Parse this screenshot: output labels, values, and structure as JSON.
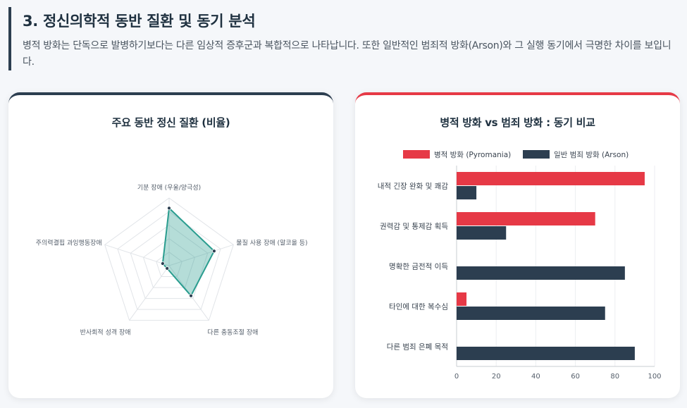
{
  "header": {
    "title": "3. 정신의학적 동반 질환 및 동기 분석",
    "description": "병적 방화는 단독으로 발병하기보다는 다른 임상적 증후군과 복합적으로 나타납니다. 또한 일반적인 범죄적 방화(Arson)와 그 실행 동기에서 극명한 차이를 보입니다."
  },
  "colors": {
    "dark": "#2c3e50",
    "red": "#e63946",
    "teal": "#2a9d8f",
    "teal_fill": "rgba(42,157,143,0.35)"
  },
  "chart_data": [
    {
      "type": "radar",
      "title": "주요 동반 정신 질환 (비율)",
      "axes": [
        "기분 장애 (우울/양극성)",
        "물질 사용 장애 (알코올 등)",
        "다른 충동조절 장애",
        "반사회적 성격 장애",
        "주의력결핍 과잉행동장애"
      ],
      "values": [
        85,
        70,
        55,
        5,
        10
      ],
      "max": 100,
      "grid_levels": 5
    },
    {
      "type": "bar",
      "orientation": "horizontal",
      "title": "병적 방화 vs 범죄 방화 : 동기 비교",
      "categories": [
        "내적 긴장 완화 및 쾌감",
        "권력감 및 통제감 획득",
        "명확한 금전적 이득",
        "타인에 대한 복수심",
        "다른 범죄 은폐 목적"
      ],
      "series": [
        {
          "name": "병적 방화 (Pyromania)",
          "color": "#e63946",
          "values": [
            95,
            70,
            0,
            5,
            0
          ]
        },
        {
          "name": "일반 범죄 방화 (Arson)",
          "color": "#2c3e50",
          "values": [
            10,
            25,
            85,
            75,
            90
          ]
        }
      ],
      "xlim": [
        0,
        100
      ],
      "xticks": [
        0,
        20,
        40,
        60,
        80,
        100
      ],
      "legend_position": "top"
    }
  ]
}
